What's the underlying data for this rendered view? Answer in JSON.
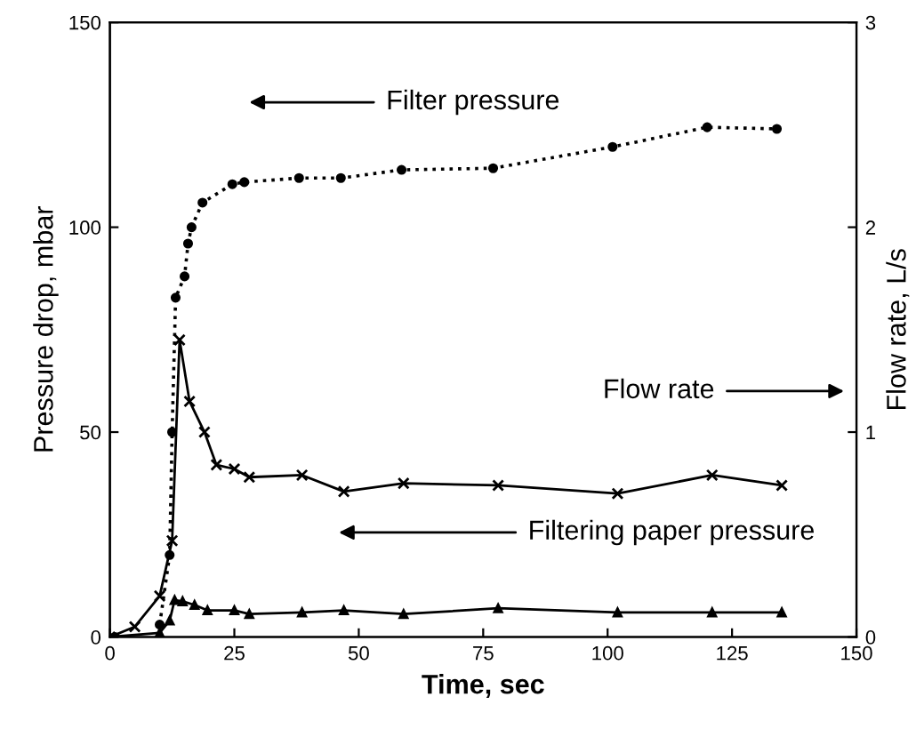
{
  "chart_data": {
    "type": "line",
    "xlabel": "Time, sec",
    "ylabel": "Pressure drop, mbar",
    "y2label": "Flow rate, L/s",
    "xlim": [
      0,
      150
    ],
    "xticks": [
      0,
      25,
      50,
      75,
      100,
      125,
      150
    ],
    "ylim": [
      0,
      150
    ],
    "yticks": [
      0,
      50,
      100,
      150
    ],
    "y2lim": [
      0,
      3
    ],
    "y2ticks": [
      0,
      1,
      2,
      3
    ],
    "grid": false,
    "legend": false,
    "annotations": [
      "Filter pressure",
      "Filtering paper pressure",
      "Flow rate"
    ],
    "series": [
      {
        "color": "#000000",
        "marker": "circle",
        "line_style": "dotted",
        "x": [
          1,
          5,
          10,
          12,
          12.5,
          13.2,
          15,
          15.7,
          16.4,
          18.6,
          24.6,
          27,
          38,
          46.4,
          58.6,
          77,
          101,
          120,
          134
        ],
        "values": [
          0,
          null,
          3,
          20,
          50,
          82.8,
          88,
          96,
          100,
          106,
          110.5,
          111,
          112,
          112,
          114,
          114.4,
          119.6,
          124.4,
          124
        ]
      },
      {
        "color": "#000000",
        "marker": "triangle",
        "line_style": "solid",
        "x": [
          0,
          10,
          12,
          13,
          14.6,
          17,
          19.6,
          25,
          28,
          38.6,
          47,
          59,
          78,
          102,
          121,
          135
        ],
        "values": [
          0,
          1,
          4,
          9,
          8.7,
          7.8,
          6.5,
          6.5,
          5.6,
          6,
          6.5,
          5.6,
          7,
          6,
          6,
          6
        ]
      },
      {
        "color": "#000000",
        "marker": "cross",
        "line_style": "solid",
        "axis": "y2",
        "x": [
          0,
          5,
          10,
          12.5,
          14,
          16,
          19,
          21.4,
          25,
          28,
          38.6,
          47,
          59,
          78,
          102,
          121,
          135
        ],
        "values": [
          0,
          0.05,
          0.2,
          0.47,
          1.45,
          1.15,
          1.0,
          0.84,
          0.82,
          0.78,
          0.79,
          0.71,
          0.75,
          0.74,
          0.7,
          0.79,
          0.74
        ]
      }
    ]
  }
}
